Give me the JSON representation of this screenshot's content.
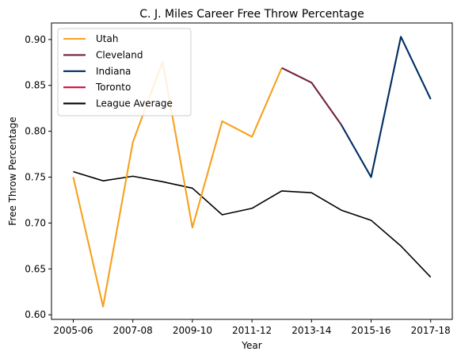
{
  "chart_data": {
    "type": "line",
    "title": "C. J. Miles Career Free Throw Percentage",
    "xlabel": "Year",
    "ylabel": "Free Throw Percentage",
    "x_ticks": [
      "2005-06",
      "2007-08",
      "2009-10",
      "2011-12",
      "2013-14",
      "2015-16",
      "2017-18"
    ],
    "x": [
      "2005-06",
      "2006-07",
      "2007-08",
      "2008-09",
      "2009-10",
      "2010-11",
      "2011-12",
      "2012-13",
      "2013-14",
      "2014-15",
      "2015-16",
      "2016-17",
      "2017-18"
    ],
    "ylim": [
      0.595,
      0.918
    ],
    "y_ticks": [
      "0.60",
      "0.65",
      "0.70",
      "0.75",
      "0.80",
      "0.85",
      "0.90"
    ],
    "grid": false,
    "legend_position": "top-left",
    "series": [
      {
        "name": "Utah",
        "color": "#f6a11e",
        "points": [
          [
            "2005-06",
            0.75
          ],
          [
            "2006-07",
            0.609
          ],
          [
            "2007-08",
            0.788
          ],
          [
            "2008-09",
            0.876
          ],
          [
            "2009-10",
            0.695
          ],
          [
            "2010-11",
            0.811
          ],
          [
            "2011-12",
            0.794
          ],
          [
            "2012-13",
            0.869
          ]
        ]
      },
      {
        "name": "Cleveland",
        "color": "#6f263d",
        "points": [
          [
            "2012-13",
            0.869
          ],
          [
            "2013-14",
            0.853
          ],
          [
            "2014-15",
            0.807
          ]
        ]
      },
      {
        "name": "Indiana",
        "color": "#002d62",
        "points": [
          [
            "2014-15",
            0.807
          ],
          [
            "2015-16",
            0.75
          ],
          [
            "2016-17",
            0.903
          ],
          [
            "2017-18",
            0.835
          ]
        ]
      },
      {
        "name": "Toronto",
        "color": "#ce1141",
        "points": []
      },
      {
        "name": "League Average",
        "color": "#000000",
        "points": [
          [
            "2005-06",
            0.756
          ],
          [
            "2006-07",
            0.746
          ],
          [
            "2007-08",
            0.751
          ],
          [
            "2008-09",
            0.745
          ],
          [
            "2009-10",
            0.738
          ],
          [
            "2010-11",
            0.709
          ],
          [
            "2011-12",
            0.716
          ],
          [
            "2012-13",
            0.735
          ],
          [
            "2013-14",
            0.733
          ],
          [
            "2014-15",
            0.714
          ],
          [
            "2015-16",
            0.703
          ],
          [
            "2016-17",
            0.675
          ],
          [
            "2017-18",
            0.641
          ]
        ]
      }
    ]
  }
}
